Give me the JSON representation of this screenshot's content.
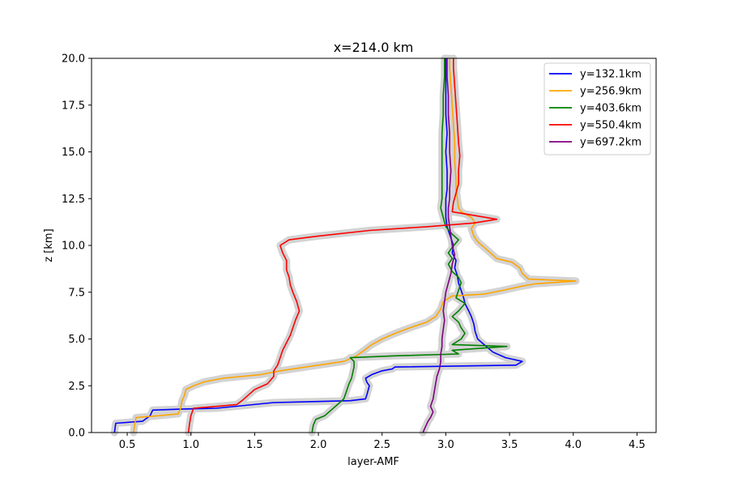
{
  "chart_data": {
    "type": "line",
    "title": "x=214.0 km",
    "xlabel": "layer-AMF",
    "ylabel": "z [km]",
    "xlim": [
      0.22,
      4.65
    ],
    "ylim": [
      0,
      20
    ],
    "xticks": [
      "0.5",
      "1.0",
      "1.5",
      "2.0",
      "2.5",
      "3.0",
      "3.5",
      "4.0",
      "4.5"
    ],
    "yticks": [
      "0.0",
      "2.5",
      "5.0",
      "7.5",
      "10.0",
      "12.5",
      "15.0",
      "17.5",
      "20.0"
    ],
    "grid": false,
    "legend_position": "top-right",
    "uncertainty_band_color": "#d3d3d3",
    "series": [
      {
        "name": "y=132.1km",
        "color": "#0000ff",
        "points": [
          [
            0.4,
            0.0
          ],
          [
            0.41,
            0.5
          ],
          [
            0.62,
            0.6
          ],
          [
            0.68,
            0.9
          ],
          [
            0.7,
            1.2
          ],
          [
            0.92,
            1.25
          ],
          [
            1.2,
            1.3
          ],
          [
            1.65,
            1.6
          ],
          [
            2.25,
            1.7
          ],
          [
            2.37,
            1.8
          ],
          [
            2.38,
            2.0
          ],
          [
            2.4,
            2.5
          ],
          [
            2.38,
            2.7
          ],
          [
            2.37,
            2.9
          ],
          [
            2.42,
            3.1
          ],
          [
            2.5,
            3.3
          ],
          [
            2.58,
            3.4
          ],
          [
            2.6,
            3.5
          ],
          [
            3.55,
            3.6
          ],
          [
            3.6,
            3.8
          ],
          [
            3.47,
            4.0
          ],
          [
            3.37,
            4.3
          ],
          [
            3.3,
            4.7
          ],
          [
            3.25,
            5.0
          ],
          [
            3.23,
            5.4
          ],
          [
            3.22,
            5.8
          ],
          [
            3.2,
            6.2
          ],
          [
            3.18,
            6.5
          ],
          [
            3.15,
            6.9
          ],
          [
            3.14,
            7.2
          ],
          [
            3.12,
            7.6
          ],
          [
            3.1,
            8.0
          ],
          [
            3.09,
            8.4
          ],
          [
            3.07,
            8.8
          ],
          [
            3.08,
            9.2
          ],
          [
            3.05,
            9.6
          ],
          [
            3.06,
            10.0
          ],
          [
            3.04,
            10.4
          ],
          [
            3.02,
            10.8
          ],
          [
            3.01,
            11.0
          ],
          [
            3.0,
            11.5
          ],
          [
            3.0,
            12.0
          ],
          [
            3.0,
            12.5
          ],
          [
            3.01,
            13.0
          ],
          [
            3.01,
            14.0
          ],
          [
            3.0,
            15.0
          ],
          [
            3.01,
            16.0
          ],
          [
            3.0,
            17.0
          ],
          [
            3.0,
            18.0
          ],
          [
            3.0,
            19.0
          ],
          [
            3.0,
            20.0
          ]
        ]
      },
      {
        "name": "y=256.9km",
        "color": "#ffa500",
        "points": [
          [
            0.55,
            0.0
          ],
          [
            0.56,
            0.5
          ],
          [
            0.57,
            0.8
          ],
          [
            0.75,
            0.9
          ],
          [
            0.9,
            1.0
          ],
          [
            0.92,
            1.3
          ],
          [
            0.93,
            1.7
          ],
          [
            0.95,
            2.0
          ],
          [
            0.96,
            2.3
          ],
          [
            1.02,
            2.5
          ],
          [
            1.1,
            2.7
          ],
          [
            1.25,
            2.9
          ],
          [
            1.55,
            3.1
          ],
          [
            1.7,
            3.3
          ],
          [
            2.0,
            3.6
          ],
          [
            2.2,
            3.8
          ],
          [
            2.3,
            4.1
          ],
          [
            2.36,
            4.4
          ],
          [
            2.42,
            4.7
          ],
          [
            2.5,
            5.0
          ],
          [
            2.6,
            5.3
          ],
          [
            2.72,
            5.6
          ],
          [
            2.85,
            5.9
          ],
          [
            2.92,
            6.2
          ],
          [
            2.96,
            6.6
          ],
          [
            2.98,
            7.0
          ],
          [
            3.05,
            7.3
          ],
          [
            3.3,
            7.4
          ],
          [
            3.45,
            7.6
          ],
          [
            3.58,
            7.8
          ],
          [
            3.7,
            7.95
          ],
          [
            4.02,
            8.1
          ],
          [
            3.65,
            8.2
          ],
          [
            3.6,
            8.5
          ],
          [
            3.58,
            8.8
          ],
          [
            3.52,
            9.1
          ],
          [
            3.4,
            9.3
          ],
          [
            3.35,
            9.6
          ],
          [
            3.3,
            9.9
          ],
          [
            3.25,
            10.2
          ],
          [
            3.22,
            10.5
          ],
          [
            3.2,
            10.9
          ],
          [
            3.23,
            11.2
          ],
          [
            3.2,
            11.5
          ],
          [
            3.12,
            11.8
          ],
          [
            3.1,
            12.0
          ],
          [
            3.09,
            12.5
          ],
          [
            3.08,
            13.0
          ],
          [
            3.08,
            13.5
          ],
          [
            3.07,
            14.5
          ],
          [
            3.07,
            15.5
          ],
          [
            3.06,
            16.5
          ],
          [
            3.05,
            17.5
          ],
          [
            3.04,
            18.5
          ],
          [
            3.03,
            19.5
          ],
          [
            3.03,
            20.0
          ]
        ]
      },
      {
        "name": "y=403.6km",
        "color": "#008000",
        "points": [
          [
            1.95,
            0.0
          ],
          [
            1.96,
            0.4
          ],
          [
            1.98,
            0.7
          ],
          [
            2.05,
            0.9
          ],
          [
            2.1,
            1.2
          ],
          [
            2.15,
            1.5
          ],
          [
            2.2,
            1.8
          ],
          [
            2.22,
            2.2
          ],
          [
            2.24,
            2.6
          ],
          [
            2.26,
            2.9
          ],
          [
            2.27,
            3.2
          ],
          [
            2.28,
            3.5
          ],
          [
            2.28,
            3.8
          ],
          [
            2.25,
            4.0
          ],
          [
            2.6,
            4.1
          ],
          [
            3.1,
            4.2
          ],
          [
            3.05,
            4.4
          ],
          [
            3.48,
            4.6
          ],
          [
            3.05,
            4.7
          ],
          [
            3.12,
            5.0
          ],
          [
            3.15,
            5.3
          ],
          [
            3.12,
            5.6
          ],
          [
            3.1,
            5.9
          ],
          [
            3.05,
            6.2
          ],
          [
            3.1,
            6.5
          ],
          [
            3.15,
            6.9
          ],
          [
            3.08,
            7.2
          ],
          [
            3.1,
            7.6
          ],
          [
            3.12,
            8.0
          ],
          [
            3.1,
            8.3
          ],
          [
            3.05,
            8.6
          ],
          [
            3.02,
            9.0
          ],
          [
            3.05,
            9.3
          ],
          [
            3.02,
            9.6
          ],
          [
            3.05,
            9.9
          ],
          [
            3.1,
            10.3
          ],
          [
            3.05,
            10.6
          ],
          [
            3.0,
            11.0
          ],
          [
            2.98,
            11.5
          ],
          [
            2.96,
            12.0
          ],
          [
            2.97,
            12.5
          ],
          [
            2.97,
            13.0
          ],
          [
            2.97,
            14.0
          ],
          [
            2.97,
            15.0
          ],
          [
            2.97,
            16.0
          ],
          [
            2.98,
            17.0
          ],
          [
            2.98,
            18.0
          ],
          [
            2.99,
            19.0
          ],
          [
            2.99,
            20.0
          ]
        ]
      },
      {
        "name": "y=550.4km",
        "color": "#ff0000",
        "points": [
          [
            0.98,
            0.0
          ],
          [
            0.99,
            0.5
          ],
          [
            1.0,
            0.9
          ],
          [
            1.02,
            1.3
          ],
          [
            1.2,
            1.4
          ],
          [
            1.36,
            1.5
          ],
          [
            1.4,
            1.7
          ],
          [
            1.45,
            2.0
          ],
          [
            1.5,
            2.3
          ],
          [
            1.6,
            2.6
          ],
          [
            1.65,
            3.0
          ],
          [
            1.65,
            3.3
          ],
          [
            1.68,
            3.6
          ],
          [
            1.7,
            4.0
          ],
          [
            1.72,
            4.4
          ],
          [
            1.75,
            4.8
          ],
          [
            1.78,
            5.2
          ],
          [
            1.8,
            5.6
          ],
          [
            1.82,
            6.0
          ],
          [
            1.85,
            6.5
          ],
          [
            1.83,
            7.0
          ],
          [
            1.8,
            7.5
          ],
          [
            1.78,
            7.9
          ],
          [
            1.77,
            8.3
          ],
          [
            1.75,
            8.7
          ],
          [
            1.75,
            9.2
          ],
          [
            1.72,
            9.6
          ],
          [
            1.7,
            10.0
          ],
          [
            1.77,
            10.3
          ],
          [
            2.0,
            10.5
          ],
          [
            2.4,
            10.8
          ],
          [
            2.85,
            11.0
          ],
          [
            3.22,
            11.2
          ],
          [
            3.4,
            11.4
          ],
          [
            3.05,
            11.8
          ],
          [
            3.06,
            12.3
          ],
          [
            3.08,
            12.8
          ],
          [
            3.1,
            13.3
          ],
          [
            3.1,
            14.0
          ],
          [
            3.11,
            14.8
          ],
          [
            3.1,
            15.5
          ],
          [
            3.09,
            16.5
          ],
          [
            3.08,
            17.5
          ],
          [
            3.07,
            18.5
          ],
          [
            3.06,
            19.5
          ],
          [
            3.06,
            20.0
          ]
        ]
      },
      {
        "name": "y=697.2km",
        "color": "#800080",
        "points": [
          [
            2.82,
            0.0
          ],
          [
            2.84,
            0.3
          ],
          [
            2.86,
            0.6
          ],
          [
            2.88,
            0.8
          ],
          [
            2.9,
            1.1
          ],
          [
            2.88,
            1.4
          ],
          [
            2.9,
            1.8
          ],
          [
            2.91,
            2.2
          ],
          [
            2.92,
            2.6
          ],
          [
            2.93,
            3.0
          ],
          [
            2.95,
            3.4
          ],
          [
            2.96,
            3.8
          ],
          [
            2.96,
            4.2
          ],
          [
            2.97,
            4.6
          ],
          [
            2.97,
            5.0
          ],
          [
            2.98,
            5.5
          ],
          [
            2.99,
            6.0
          ],
          [
            2.98,
            6.5
          ],
          [
            2.99,
            7.0
          ],
          [
            3.0,
            7.5
          ],
          [
            3.02,
            8.0
          ],
          [
            3.04,
            8.5
          ],
          [
            3.05,
            9.0
          ],
          [
            3.07,
            9.5
          ],
          [
            3.05,
            10.0
          ],
          [
            3.04,
            10.5
          ],
          [
            3.03,
            11.0
          ],
          [
            3.02,
            11.5
          ],
          [
            3.02,
            12.0
          ],
          [
            3.03,
            12.5
          ],
          [
            3.03,
            13.0
          ],
          [
            3.04,
            14.0
          ],
          [
            3.03,
            15.0
          ],
          [
            3.03,
            16.0
          ],
          [
            3.02,
            17.0
          ],
          [
            3.02,
            18.0
          ],
          [
            3.01,
            19.0
          ],
          [
            3.01,
            20.0
          ]
        ]
      }
    ]
  }
}
